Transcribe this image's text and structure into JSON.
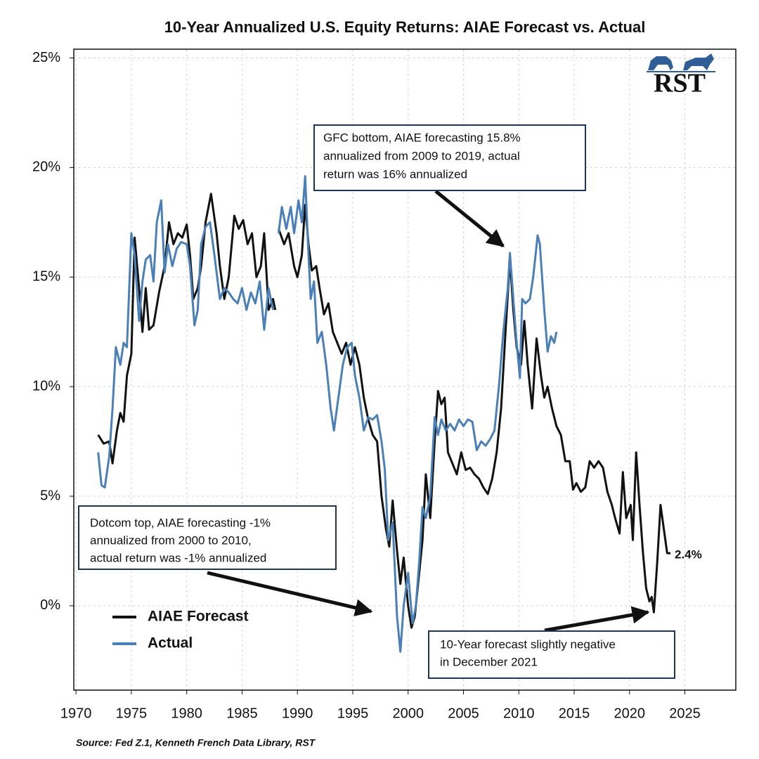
{
  "chart_data": {
    "type": "line",
    "title": "10-Year Annualized U.S. Equity Returns: AIAE Forecast vs. Actual",
    "source": "Source: Fed Z.1, Kenneth French Data Library, RST",
    "logo": "RST",
    "xlim": [
      1969.8,
      2029.6
    ],
    "ylim": [
      -3.85,
      25.4
    ],
    "xticks": [
      1970,
      1975,
      1980,
      1985,
      1990,
      1995,
      2000,
      2005,
      2010,
      2015,
      2020,
      2025
    ],
    "yticks": [
      {
        "value": 0,
        "label": "0%"
      },
      {
        "value": 5,
        "label": "5%"
      },
      {
        "value": 10,
        "label": "10%"
      },
      {
        "value": 15,
        "label": "15%"
      },
      {
        "value": 20,
        "label": "20%"
      },
      {
        "value": 25,
        "label": "25%"
      }
    ],
    "grid": true,
    "legend": "lower left",
    "series": [
      {
        "name": "AIAE Forecast",
        "color": "#111111",
        "x": [
          1972,
          1972.5,
          1973,
          1973.3,
          1973.7,
          1974,
          1974.3,
          1974.6,
          1975,
          1975.3,
          1975.7,
          1976,
          1976.3,
          1976.6,
          1977,
          1977.5,
          1978,
          1978.4,
          1978.8,
          1979.2,
          1979.6,
          1980,
          1980.3,
          1980.6,
          1981,
          1981.3,
          1981.7,
          1982.2,
          1982.7,
          1983,
          1983.4,
          1983.8,
          1984.3,
          1984.7,
          1985.1,
          1985.5,
          1985.9,
          1986.3,
          1986.7,
          1987,
          1987.4,
          1987.8,
          1988,
          null,
          1988.3,
          1988.8,
          1989.2,
          1989.7,
          1990,
          1990.4,
          1990.7,
          1991,
          1991.3,
          1991.7,
          1992,
          1992.4,
          1992.8,
          1993.2,
          1993.6,
          1994,
          1994.4,
          1994.8,
          1995.2,
          1995.6,
          1996,
          1996.4,
          1996.8,
          1997.2,
          1997.6,
          1998,
          1998.3,
          1998.6,
          1999,
          1999.3,
          1999.6,
          2000,
          2000.3,
          2000.6,
          2001,
          2001.3,
          2001.6,
          2002,
          2002.4,
          2002.7,
          2003,
          2003.3,
          2003.6,
          2004,
          2004.4,
          2004.8,
          2005.2,
          2005.6,
          2006,
          2006.4,
          2006.8,
          2007.2,
          2007.6,
          2008,
          2008.4,
          2008.8,
          2009.2,
          2009.5,
          2009.8,
          2010.2,
          2010.5,
          2010.8,
          2011.2,
          2011.6,
          2012,
          2012.3,
          2012.6,
          2013,
          2013.4,
          2013.8,
          2014.2,
          2014.6,
          2014.9,
          2015.2,
          2015.6,
          2016,
          2016.4,
          2016.8,
          2017.2,
          2017.6,
          2018,
          2018.4,
          2018.7,
          2019.1,
          2019.4,
          2019.7,
          2020.1,
          2020.3,
          2020.6,
          2020.9,
          2021.2,
          2021.5,
          2021.8,
          2022,
          2022.2,
          2022.5,
          2022.8,
          2023.1,
          2023.4,
          2023.7
        ],
        "values": [
          7.8,
          7.4,
          7.5,
          6.5,
          8.0,
          8.8,
          8.4,
          10.5,
          11.5,
          16.8,
          14.5,
          12.5,
          14.5,
          12.6,
          12.8,
          14.3,
          15.5,
          17.5,
          16.5,
          17.0,
          16.8,
          17.4,
          16.0,
          14.0,
          14.5,
          15.5,
          17.5,
          18.8,
          17.0,
          15.5,
          14.0,
          15.0,
          17.8,
          17.2,
          17.6,
          16.5,
          17.0,
          15.0,
          15.5,
          17.0,
          13.5,
          14.0,
          13.5,
          null,
          17.2,
          16.5,
          17.0,
          15.5,
          15.0,
          16.0,
          18.3,
          16.5,
          15.3,
          15.5,
          14.5,
          13.3,
          13.8,
          12.5,
          12.0,
          11.5,
          12.0,
          11.0,
          11.8,
          11.0,
          9.5,
          8.5,
          7.8,
          7.5,
          5.0,
          3.5,
          2.7,
          4.8,
          2.5,
          1.0,
          2.2,
          0.0,
          -1.0,
          -0.5,
          1.5,
          3.0,
          6.0,
          4.0,
          7.5,
          9.8,
          9.2,
          9.5,
          7.0,
          6.5,
          6.0,
          7.0,
          6.2,
          6.3,
          6.0,
          5.8,
          5.4,
          5.1,
          5.8,
          7.0,
          9.0,
          12.5,
          15.8,
          13.5,
          11.8,
          11.0,
          13.0,
          11.0,
          9.0,
          12.2,
          10.5,
          9.5,
          10.0,
          9.0,
          8.2,
          7.8,
          6.6,
          6.6,
          5.3,
          5.6,
          5.2,
          5.4,
          6.6,
          6.3,
          6.6,
          6.3,
          5.2,
          4.6,
          4.0,
          3.3,
          6.1,
          4.0,
          4.6,
          3.0,
          7.0,
          4.6,
          2.5,
          0.8,
          0.2,
          0.4,
          -0.3,
          2.0,
          4.6,
          3.5,
          2.4,
          2.4
        ]
      },
      {
        "name": "Actual",
        "color": "#4a7fb8",
        "x": [
          1972,
          1972.3,
          1972.6,
          1973,
          1973.3,
          1973.6,
          1974,
          1974.3,
          1974.6,
          1975,
          1975.3,
          1975.7,
          1976,
          1976.3,
          1976.7,
          1977,
          1977.3,
          1977.7,
          1978,
          1978.3,
          1978.7,
          1979.1,
          1979.5,
          1980,
          1980.3,
          1980.7,
          1981,
          1981.3,
          1981.7,
          1982.1,
          1982.5,
          1983,
          1983.4,
          1983.8,
          1984.2,
          1984.6,
          1985,
          1985.4,
          1985.8,
          1986.2,
          1986.6,
          1987,
          1987.4,
          1987.8,
          null,
          1988.3,
          1988.6,
          1989,
          1989.4,
          1989.7,
          1990.1,
          1990.4,
          1990.7,
          1991,
          1991.2,
          1991.5,
          1991.8,
          1992.2,
          1992.6,
          1993,
          1993.3,
          1993.7,
          1994.1,
          1994.5,
          1994.9,
          1995.2,
          1995.6,
          1996,
          1996.4,
          1996.8,
          1997.2,
          1997.6,
          1997.9,
          1998.2,
          1998.6,
          1999,
          1999.3,
          1999.6,
          2000,
          2000.4,
          2000.7,
          2001,
          2001.3,
          2001.6,
          2002,
          2002.4,
          2002.7,
          2003,
          2003.4,
          2003.8,
          2004.2,
          2004.6,
          2005,
          2005.4,
          2005.8,
          2006.2,
          2006.6,
          2007,
          2007.4,
          2007.8,
          2008.2,
          2008.6,
          2009,
          2009.2,
          2009.5,
          2009.8,
          2010.1,
          2010.3,
          2010.6,
          2011,
          2011.3,
          2011.7,
          2011.9,
          2012.3,
          2012.6,
          2012.9,
          2013.2,
          2013.4
        ],
        "values": [
          7.0,
          5.5,
          5.4,
          6.8,
          9.0,
          11.8,
          11.0,
          12.0,
          11.8,
          17.0,
          16.0,
          13.0,
          14.8,
          15.8,
          16.0,
          14.8,
          17.5,
          18.5,
          15.2,
          16.5,
          15.5,
          16.3,
          16.6,
          16.5,
          15.5,
          12.8,
          13.5,
          16.5,
          17.3,
          17.5,
          16.0,
          14.0,
          14.5,
          14.3,
          14.0,
          13.8,
          14.5,
          13.5,
          14.3,
          13.8,
          14.8,
          12.6,
          14.5,
          13.5,
          null,
          17.0,
          18.2,
          17.2,
          18.2,
          17.0,
          18.5,
          17.5,
          19.6,
          16.0,
          14.0,
          14.8,
          12.0,
          12.5,
          11.0,
          9.0,
          8.0,
          9.5,
          11.0,
          11.8,
          12.0,
          10.5,
          9.5,
          8.0,
          8.6,
          8.5,
          8.7,
          7.5,
          6.2,
          3.0,
          3.8,
          -0.5,
          -2.1,
          0.0,
          1.5,
          -0.8,
          0.0,
          2.0,
          4.5,
          4.0,
          5.0,
          8.6,
          7.8,
          8.5,
          8.0,
          8.3,
          8.0,
          8.5,
          8.2,
          8.5,
          8.4,
          7.1,
          7.5,
          7.3,
          7.6,
          8.0,
          10.0,
          12.5,
          14.5,
          16.1,
          14.0,
          12.0,
          10.4,
          14.0,
          13.8,
          14.0,
          15.0,
          16.9,
          16.5,
          13.5,
          11.6,
          12.3,
          12.0,
          12.5
        ]
      }
    ],
    "annotations": [
      {
        "lines": [
          "GFC bottom, AIAE forecasting 15.8%",
          "annualized from 2009 to 2019, actual",
          "return was 16% annualized"
        ]
      },
      {
        "lines": [
          "Dotcom top, AIAE forecasting -1%",
          "annualized from 2000 to 2010,",
          "actual return was -1% annualized"
        ]
      },
      {
        "lines": [
          "10-Year forecast slightly negative",
          "in December 2021"
        ]
      },
      {
        "lines": [
          "2.4%"
        ]
      }
    ]
  }
}
